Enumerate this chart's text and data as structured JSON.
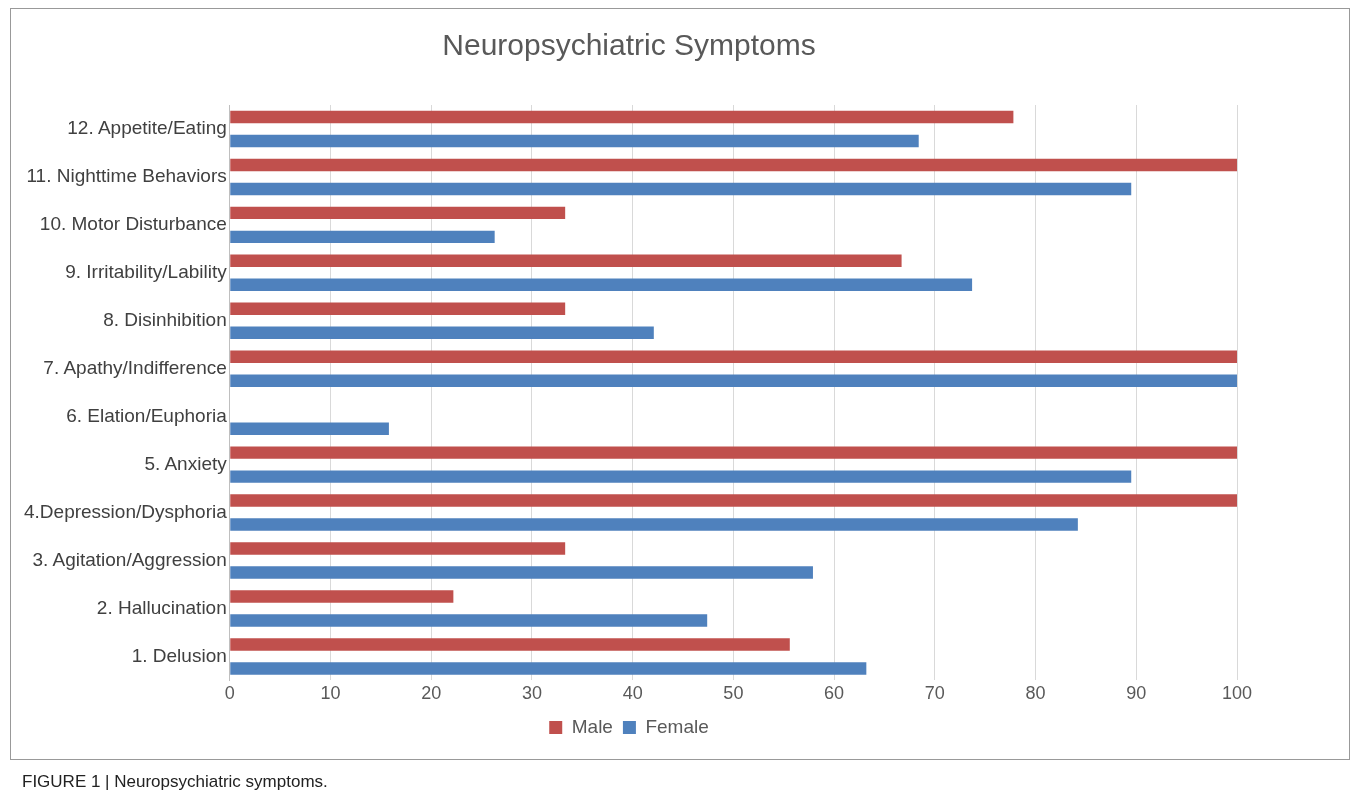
{
  "chart_data": {
    "type": "bar",
    "orientation": "horizontal",
    "title": "Neuropsychiatric Symptoms",
    "categories": [
      "12. Appetite/Eating",
      "11. Nighttime Behaviors",
      "10. Motor Disturbance",
      "9. Irritability/Lability",
      "8. Disinhibition",
      "7. Apathy/Indifference",
      "6. Elation/Euphoria",
      "5. Anxiety",
      "4.Depression/Dysphoria",
      "3. Agitation/Aggression",
      "2. Hallucination",
      "1. Delusion"
    ],
    "series": [
      {
        "name": "Male",
        "color": "#c0504d",
        "values": [
          77.8,
          100,
          33.3,
          66.7,
          33.3,
          100,
          0,
          100,
          100,
          33.3,
          22.2,
          55.6
        ]
      },
      {
        "name": "Female",
        "color": "#4f81bd",
        "values": [
          68.4,
          89.5,
          26.3,
          73.7,
          42.1,
          100,
          15.8,
          89.5,
          84.2,
          57.9,
          47.4,
          63.2
        ]
      }
    ],
    "xlim": [
      0,
      100
    ],
    "xticks": [
      0,
      10,
      20,
      30,
      40,
      50,
      60,
      70,
      80,
      90,
      100
    ],
    "grid": "x",
    "legend": "bottom",
    "annotations": [
      "FIGURE 1 | Neuropsychiatric symptoms."
    ]
  }
}
